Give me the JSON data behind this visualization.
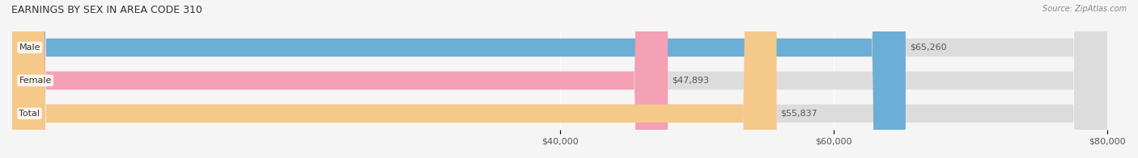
{
  "title": "EARNINGS BY SEX IN AREA CODE 310",
  "source": "Source: ZipAtlas.com",
  "categories": [
    "Male",
    "Female",
    "Total"
  ],
  "values": [
    65260,
    47893,
    55837
  ],
  "bar_colors": [
    "#6baed6",
    "#f4a0b5",
    "#f5c98a"
  ],
  "bar_bg_color": "#e8e8e8",
  "value_labels": [
    "$65,260",
    "$47,893",
    "$55,837"
  ],
  "xmin": 0,
  "xmax": 80000,
  "xticks": [
    40000,
    60000,
    80000
  ],
  "xticklabels": [
    "$40,000",
    "$60,000",
    "$80,000"
  ],
  "figsize": [
    14.06,
    1.96
  ],
  "dpi": 100,
  "background_color": "#f5f5f5",
  "title_fontsize": 9,
  "label_fontsize": 8,
  "value_fontsize": 8,
  "source_fontsize": 7
}
